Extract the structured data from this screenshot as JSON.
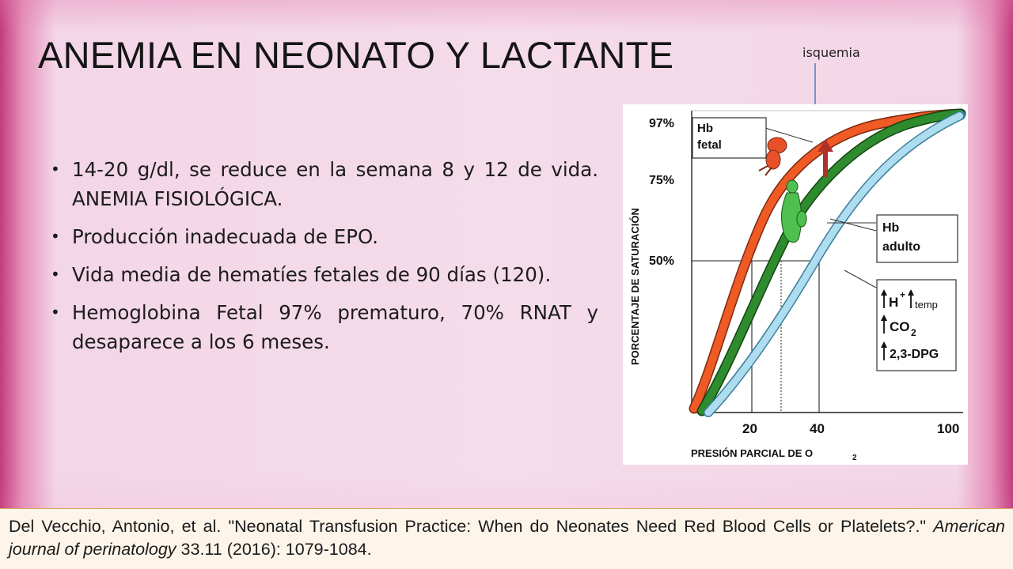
{
  "slide": {
    "title": "ANEMIA EN NEONATO Y LACTANTE",
    "annotation": "isquemia",
    "bullets": [
      "14-20 g/dl, se reduce en la semana 8 y 12 de vida. ANEMIA FISIOLÓGICA.",
      "Producción inadecuada de EPO.",
      "Vida media de hematíes fetales de 90 días (120).",
      "Hemoglobina Fetal 97% prematuro, 70% RNAT y desaparece a los 6 meses."
    ]
  },
  "figure": {
    "y_axis_label": "PORCENTAJE DE SATURACIÓN",
    "x_axis_label": "PRESIÓN PARCIAL DE O",
    "x_axis_label_sub": "2",
    "y_ticks": [
      "97%",
      "75%",
      "50%"
    ],
    "x_ticks": [
      "20",
      "40",
      "100"
    ],
    "box_fetal": [
      "Hb",
      "fetal"
    ],
    "box_adult": [
      "Hb",
      "adulto"
    ],
    "box_factors": {
      "h": "H",
      "h_sup": "+",
      "temp": "temp",
      "co2": "CO",
      "co2_sub": "2",
      "dpg": "2,3-DPG"
    },
    "colors": {
      "fetal_curve": "#f05a24",
      "adult_curve": "#2e8b2e",
      "shifted_curve": "#aeddf0"
    }
  },
  "citation": {
    "authors": "Del Vecchio, Antonio, et al. \"Neonatal Transfusion Practice: When do Neonates Need Red Blood Cells or Platelets?.\" ",
    "journal": "American journal of perinatology",
    "details": " 33.11 (2016): 1079-1084."
  }
}
